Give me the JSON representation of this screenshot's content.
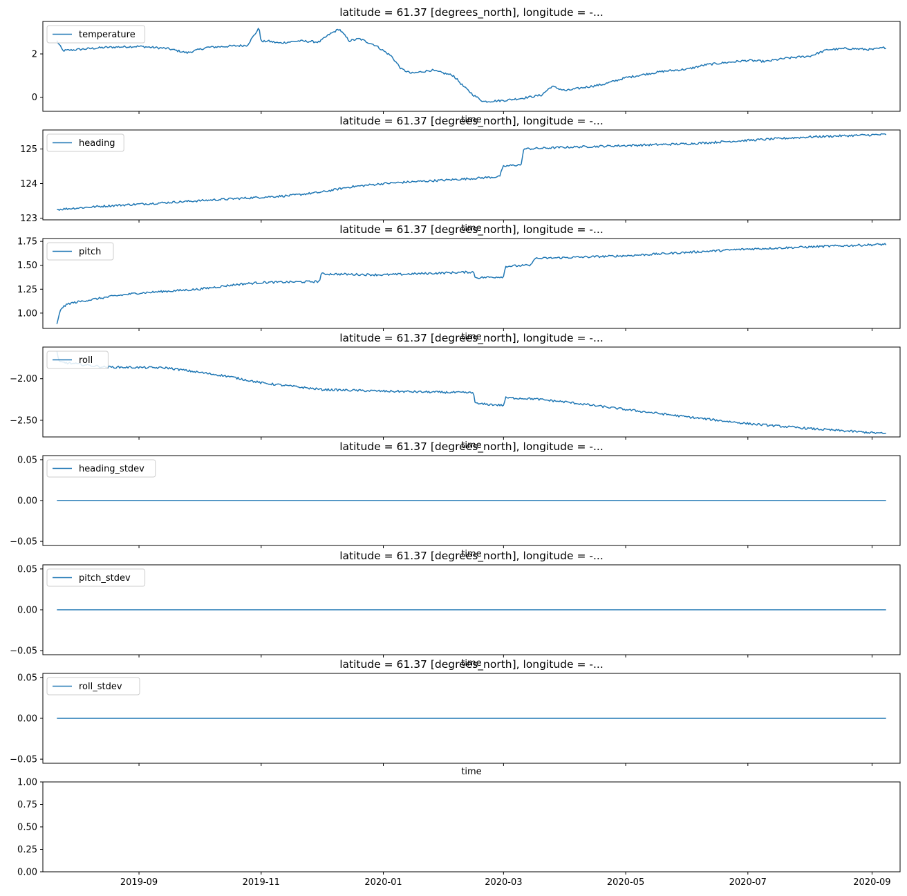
{
  "figure": {
    "shared_xlabel": "time"
  },
  "chart_data": [
    {
      "type": "line",
      "title": "latitude = 61.37 [degrees_north], longitude = -...",
      "xlabel": "time",
      "series": [
        {
          "name": "temperature",
          "color": "#1f77b4",
          "x": [
            "2019-07-22",
            "2019-07-25",
            "2019-08-01",
            "2019-08-15",
            "2019-09-01",
            "2019-09-15",
            "2019-09-25",
            "2019-10-05",
            "2019-10-15",
            "2019-10-25",
            "2019-10-31",
            "2019-11-01",
            "2019-11-04",
            "2019-11-10",
            "2019-11-20",
            "2019-11-30",
            "2019-12-05",
            "2019-12-10",
            "2019-12-15",
            "2019-12-20",
            "2019-12-28",
            "2020-01-05",
            "2020-01-10",
            "2020-01-15",
            "2020-01-25",
            "2020-02-05",
            "2020-02-10",
            "2020-02-15",
            "2020-02-20",
            "2020-03-01",
            "2020-03-10",
            "2020-03-20",
            "2020-03-25",
            "2020-04-01",
            "2020-04-10",
            "2020-04-20",
            "2020-05-01",
            "2020-05-10",
            "2020-05-20",
            "2020-06-01",
            "2020-06-10",
            "2020-06-20",
            "2020-07-01",
            "2020-07-10",
            "2020-07-20",
            "2020-08-01",
            "2020-08-10",
            "2020-08-20",
            "2020-09-01",
            "2020-09-08"
          ],
          "y": [
            2.6,
            2.15,
            2.2,
            2.3,
            2.35,
            2.25,
            2.05,
            2.3,
            2.35,
            2.4,
            3.2,
            2.55,
            2.6,
            2.5,
            2.6,
            2.55,
            2.9,
            3.15,
            2.6,
            2.7,
            2.4,
            1.9,
            1.3,
            1.1,
            1.25,
            1.0,
            0.5,
            0.1,
            -0.2,
            -0.15,
            -0.05,
            0.1,
            0.5,
            0.3,
            0.45,
            0.6,
            0.9,
            1.05,
            1.2,
            1.3,
            1.5,
            1.6,
            1.7,
            1.65,
            1.8,
            1.9,
            2.2,
            2.25,
            2.2,
            2.3
          ]
        }
      ],
      "yticks": [
        0,
        2
      ],
      "ylim": [
        -0.65,
        3.5
      ],
      "legend": "upper left"
    },
    {
      "type": "line",
      "title": "latitude = 61.37 [degrees_north], longitude = -...",
      "xlabel": "time",
      "series": [
        {
          "name": "heading",
          "color": "#1f77b4",
          "x": [
            "2019-07-22",
            "2019-08-15",
            "2019-09-15",
            "2019-10-15",
            "2019-11-15",
            "2019-12-01",
            "2019-12-15",
            "2020-01-01",
            "2020-01-15",
            "2020-02-01",
            "2020-02-15",
            "2020-02-28",
            "2020-03-01",
            "2020-03-10",
            "2020-03-11",
            "2020-04-01",
            "2020-05-01",
            "2020-06-01",
            "2020-07-01",
            "2020-08-01",
            "2020-09-08"
          ],
          "y": [
            123.25,
            123.35,
            123.45,
            123.55,
            123.65,
            123.75,
            123.9,
            124.0,
            124.05,
            124.1,
            124.15,
            124.2,
            124.5,
            124.55,
            125.0,
            125.05,
            125.1,
            125.15,
            125.25,
            125.35,
            125.42
          ]
        }
      ],
      "yticks": [
        123,
        124,
        125
      ],
      "ylim": [
        122.95,
        125.55
      ],
      "legend": "upper left"
    },
    {
      "type": "line",
      "title": "latitude = 61.37 [degrees_north], longitude = -...",
      "xlabel": "time",
      "series": [
        {
          "name": "pitch",
          "color": "#1f77b4",
          "x": [
            "2019-07-22",
            "2019-07-24",
            "2019-07-28",
            "2019-08-05",
            "2019-08-20",
            "2019-09-01",
            "2019-10-01",
            "2019-10-20",
            "2019-11-01",
            "2019-11-30",
            "2019-12-01",
            "2020-01-01",
            "2020-02-15",
            "2020-02-16",
            "2020-03-01",
            "2020-03-02",
            "2020-03-15",
            "2020-03-16",
            "2020-05-01",
            "2020-07-01",
            "2020-09-08"
          ],
          "y": [
            0.88,
            1.05,
            1.1,
            1.13,
            1.18,
            1.21,
            1.25,
            1.3,
            1.32,
            1.33,
            1.41,
            1.4,
            1.43,
            1.37,
            1.38,
            1.49,
            1.5,
            1.57,
            1.6,
            1.67,
            1.72
          ]
        }
      ],
      "yticks": [
        1.0,
        1.25,
        1.5,
        1.75
      ],
      "ylim": [
        0.84,
        1.78
      ],
      "legend": "upper left"
    },
    {
      "type": "line",
      "title": "latitude = 61.37 [degrees_north], longitude = -...",
      "xlabel": "time",
      "series": [
        {
          "name": "roll",
          "color": "#1f77b4",
          "x": [
            "2019-07-22",
            "2019-07-23",
            "2019-08-15",
            "2019-09-15",
            "2019-10-15",
            "2019-11-01",
            "2019-12-01",
            "2020-01-01",
            "2020-02-15",
            "2020-02-16",
            "2020-03-01",
            "2020-03-02",
            "2020-03-15",
            "2020-04-01",
            "2020-05-01",
            "2020-06-01",
            "2020-07-01",
            "2020-08-01",
            "2020-09-08"
          ],
          "y": [
            -1.67,
            -1.8,
            -1.86,
            -1.87,
            -1.97,
            -2.05,
            -2.13,
            -2.15,
            -2.17,
            -2.3,
            -2.32,
            -2.23,
            -2.24,
            -2.28,
            -2.37,
            -2.46,
            -2.54,
            -2.6,
            -2.66
          ]
        }
      ],
      "yticks": [
        -2.5,
        -2.0
      ],
      "ylim": [
        -2.7,
        -1.62
      ],
      "legend": "upper left"
    },
    {
      "type": "line",
      "title": "latitude = 61.37 [degrees_north], longitude = -...",
      "xlabel": "time",
      "series": [
        {
          "name": "heading_stdev",
          "color": "#1f77b4",
          "x": [
            "2019-07-22",
            "2020-09-08"
          ],
          "y": [
            0,
            0
          ]
        }
      ],
      "yticks": [
        -0.05,
        0.0,
        0.05
      ],
      "ylim": [
        -0.055,
        0.055
      ],
      "legend": "upper left"
    },
    {
      "type": "line",
      "title": "latitude = 61.37 [degrees_north], longitude = -...",
      "xlabel": "time",
      "series": [
        {
          "name": "pitch_stdev",
          "color": "#1f77b4",
          "x": [
            "2019-07-22",
            "2020-09-08"
          ],
          "y": [
            0,
            0
          ]
        }
      ],
      "yticks": [
        -0.05,
        0.0,
        0.05
      ],
      "ylim": [
        -0.055,
        0.055
      ],
      "legend": "upper left"
    },
    {
      "type": "line",
      "title": "latitude = 61.37 [degrees_north], longitude = -...",
      "xlabel": "time",
      "series": [
        {
          "name": "roll_stdev",
          "color": "#1f77b4",
          "x": [
            "2019-07-22",
            "2020-09-08"
          ],
          "y": [
            0,
            0
          ]
        }
      ],
      "yticks": [
        -0.05,
        0.0,
        0.05
      ],
      "ylim": [
        -0.055,
        0.055
      ],
      "legend": "upper left"
    },
    {
      "type": "line",
      "title": "",
      "xlabel": "",
      "series": [],
      "yticks": [
        0.0,
        0.25,
        0.5,
        0.75,
        1.0
      ],
      "ylim": [
        0,
        1
      ],
      "legend": "none"
    }
  ],
  "x_axis": {
    "range": [
      "2019-07-15",
      "2020-09-15"
    ],
    "ticks": [
      "2019-09-01",
      "2019-11-01",
      "2020-01-01",
      "2020-03-01",
      "2020-05-01",
      "2020-07-01",
      "2020-09-01"
    ],
    "tick_labels": [
      "2019-09",
      "2019-11",
      "2020-01",
      "2020-03",
      "2020-05",
      "2020-07",
      "2020-09"
    ]
  }
}
